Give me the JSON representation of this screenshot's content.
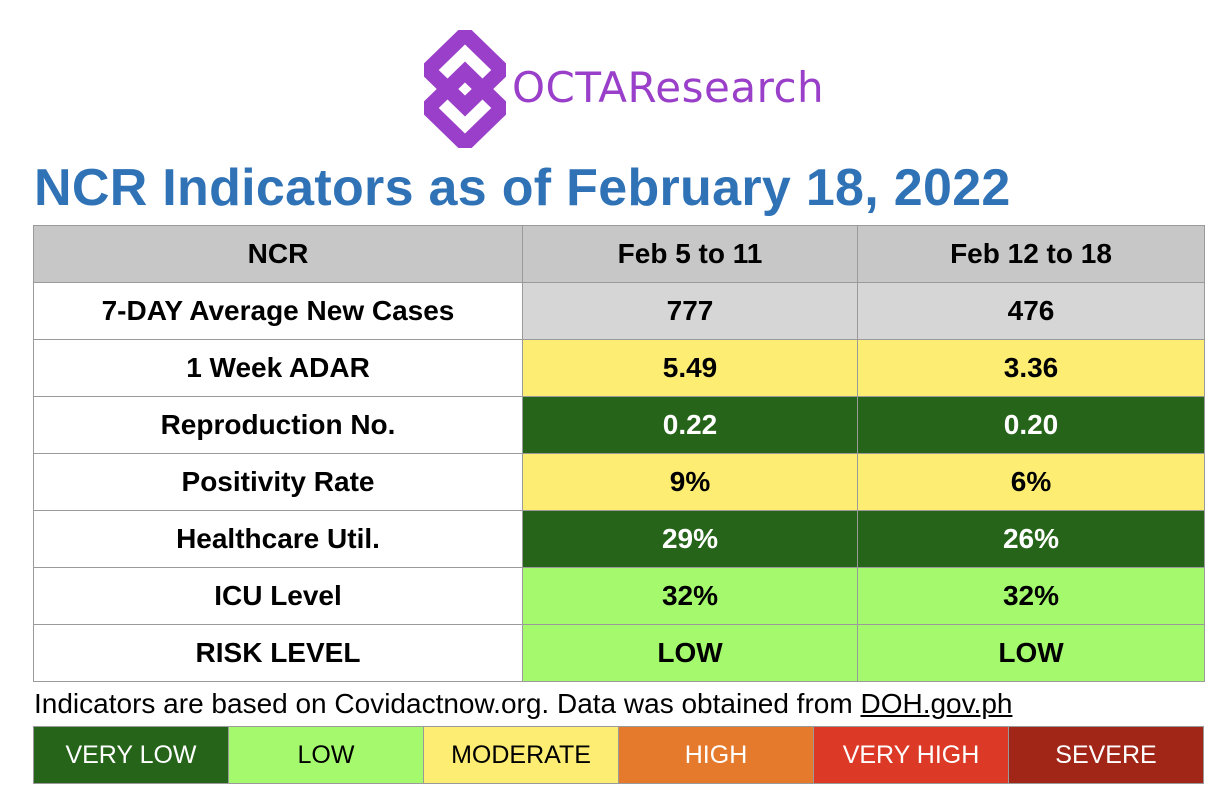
{
  "logo": {
    "text": "OCTAResearch",
    "color": "#9a3fc9"
  },
  "title": "NCR Indicators as of February 18, 2022",
  "table": {
    "headers": [
      "NCR",
      "Feb 5 to 11",
      "Feb 12 to 18"
    ],
    "rows": [
      {
        "label": "7-DAY Average New Cases",
        "v1": "777",
        "v2": "476",
        "color": "#d6d6d6"
      },
      {
        "label": "1 Week ADAR",
        "v1": "5.49",
        "v2": "3.36",
        "color": "#fdee73"
      },
      {
        "label": "Reproduction No.",
        "v1": "0.22",
        "v2": "0.20",
        "color": "#256419"
      },
      {
        "label": "Positivity Rate",
        "v1": "9%",
        "v2": "6%",
        "color": "#fdee73"
      },
      {
        "label": "Healthcare Util.",
        "v1": "29%",
        "v2": "26%",
        "color": "#256419"
      },
      {
        "label": "ICU Level",
        "v1": "32%",
        "v2": "32%",
        "color": "#a4f96c"
      },
      {
        "label": "RISK LEVEL",
        "v1": "LOW",
        "v2": "LOW",
        "color": "#a4f96c"
      }
    ]
  },
  "footnote": {
    "text": "Indicators are based on Covidactnow.org. Data was obtained from ",
    "link": "DOH.gov.ph"
  },
  "legend": [
    {
      "label": "VERY LOW",
      "bg": "#256419",
      "fg": "#ffffff"
    },
    {
      "label": "LOW",
      "bg": "#a4f96c",
      "fg": "#000000"
    },
    {
      "label": "MODERATE",
      "bg": "#fdee73",
      "fg": "#000000"
    },
    {
      "label": "HIGH",
      "bg": "#e57a2c",
      "fg": "#ffffff"
    },
    {
      "label": "VERY HIGH",
      "bg": "#dc3a27",
      "fg": "#ffffff"
    },
    {
      "label": "SEVERE",
      "bg": "#a12618",
      "fg": "#ffffff"
    }
  ]
}
